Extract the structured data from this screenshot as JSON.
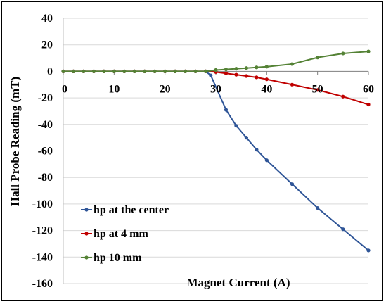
{
  "chart_data": {
    "type": "line",
    "title": "",
    "xlabel": "Magnet Current (A)",
    "ylabel": "Hall Probe Reading (mT)",
    "xlim": [
      0,
      60
    ],
    "ylim": [
      -160,
      40
    ],
    "x_ticks": [
      0,
      10,
      20,
      30,
      40,
      50,
      60
    ],
    "y_ticks": [
      40,
      20,
      0,
      -20,
      -40,
      -60,
      -80,
      -100,
      -120,
      -140,
      -160
    ],
    "x_tick_labels": [
      "0",
      "10",
      "20",
      "30",
      "40",
      "50",
      "60"
    ],
    "y_tick_labels": [
      "40",
      "20",
      "0",
      "-20",
      "-40",
      "-60",
      "-80",
      "-100",
      "-120",
      "-140",
      "-160"
    ],
    "grid": {
      "horizontal": true,
      "vertical": false
    },
    "legend": {
      "placement": "bottom-left"
    },
    "series": [
      {
        "name": "hp at the center",
        "color": "#2f5597",
        "points": [
          [
            0,
            0
          ],
          [
            2,
            0
          ],
          [
            4,
            0
          ],
          [
            6,
            0
          ],
          [
            8,
            0
          ],
          [
            10,
            0
          ],
          [
            12,
            0
          ],
          [
            14,
            0
          ],
          [
            16,
            0
          ],
          [
            18,
            0
          ],
          [
            20,
            0
          ],
          [
            22,
            0
          ],
          [
            24,
            0
          ],
          [
            26,
            0
          ],
          [
            28,
            0
          ],
          [
            29,
            -3
          ],
          [
            32,
            -29
          ],
          [
            34,
            -41
          ],
          [
            36,
            -50
          ],
          [
            38,
            -59
          ],
          [
            40,
            -67
          ],
          [
            45,
            -85
          ],
          [
            50,
            -103
          ],
          [
            55,
            -119
          ],
          [
            60,
            -135
          ]
        ]
      },
      {
        "name": "hp at 4 mm",
        "color": "#c00000",
        "points": [
          [
            0,
            0
          ],
          [
            2,
            0
          ],
          [
            4,
            0
          ],
          [
            6,
            0
          ],
          [
            8,
            0
          ],
          [
            10,
            0
          ],
          [
            12,
            0
          ],
          [
            14,
            0
          ],
          [
            16,
            0
          ],
          [
            18,
            0
          ],
          [
            20,
            0
          ],
          [
            22,
            0
          ],
          [
            24,
            0
          ],
          [
            26,
            0
          ],
          [
            28,
            0
          ],
          [
            30,
            -0.5
          ],
          [
            32,
            -1.5
          ],
          [
            34,
            -2.5
          ],
          [
            36,
            -3.5
          ],
          [
            38,
            -4.5
          ],
          [
            40,
            -6
          ],
          [
            45,
            -10
          ],
          [
            50,
            -14
          ],
          [
            55,
            -19
          ],
          [
            60,
            -25
          ]
        ]
      },
      {
        "name": "hp 10 mm",
        "color": "#548235",
        "points": [
          [
            0,
            0
          ],
          [
            2,
            0
          ],
          [
            4,
            0
          ],
          [
            6,
            0
          ],
          [
            8,
            0
          ],
          [
            10,
            0
          ],
          [
            12,
            0
          ],
          [
            14,
            0
          ],
          [
            16,
            0
          ],
          [
            18,
            0
          ],
          [
            20,
            0
          ],
          [
            22,
            0
          ],
          [
            24,
            0
          ],
          [
            26,
            0
          ],
          [
            28,
            0
          ],
          [
            30,
            1
          ],
          [
            32,
            1.5
          ],
          [
            34,
            2
          ],
          [
            36,
            2.5
          ],
          [
            38,
            3
          ],
          [
            40,
            3.5
          ],
          [
            45,
            5.5
          ],
          [
            50,
            10.5
          ],
          [
            55,
            13.5
          ],
          [
            60,
            15
          ]
        ]
      }
    ]
  }
}
